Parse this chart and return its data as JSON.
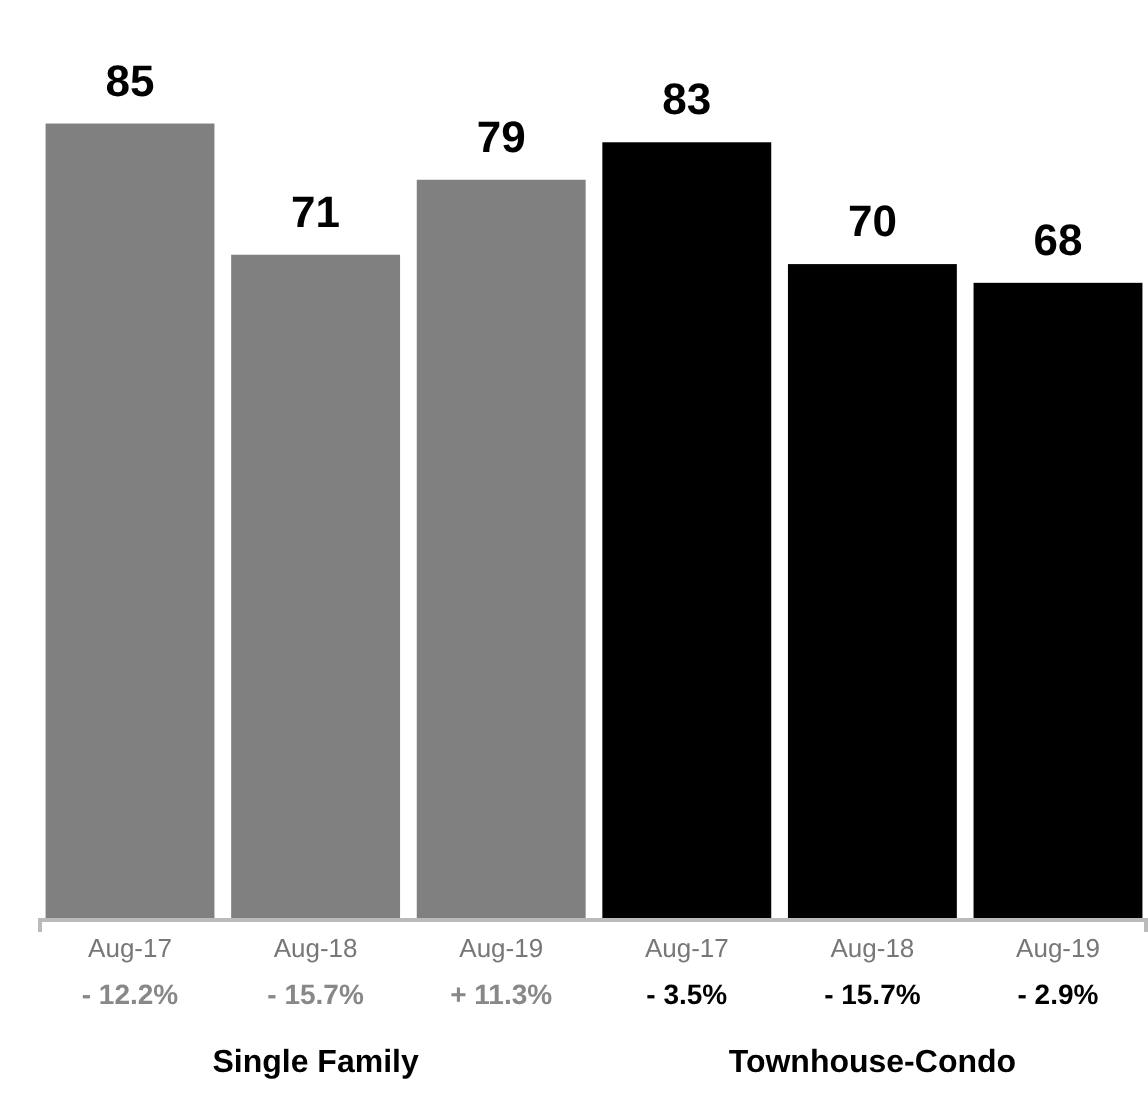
{
  "chart_data": {
    "type": "bar",
    "categories": [
      "Aug-17",
      "Aug-18",
      "Aug-19",
      "Aug-17",
      "Aug-18",
      "Aug-19"
    ],
    "values": [
      85,
      71,
      79,
      83,
      70,
      68
    ],
    "colors": [
      "#808080",
      "#808080",
      "#808080",
      "#000000",
      "#000000",
      "#000000"
    ],
    "data_labels": true,
    "annotations": [
      "- 12.2%",
      "- 15.7%",
      "+ 11.3%",
      "- 3.5%",
      "- 15.7%",
      "- 2.9%",
      "Single Family",
      "Townhouse-Condo"
    ]
  }
}
